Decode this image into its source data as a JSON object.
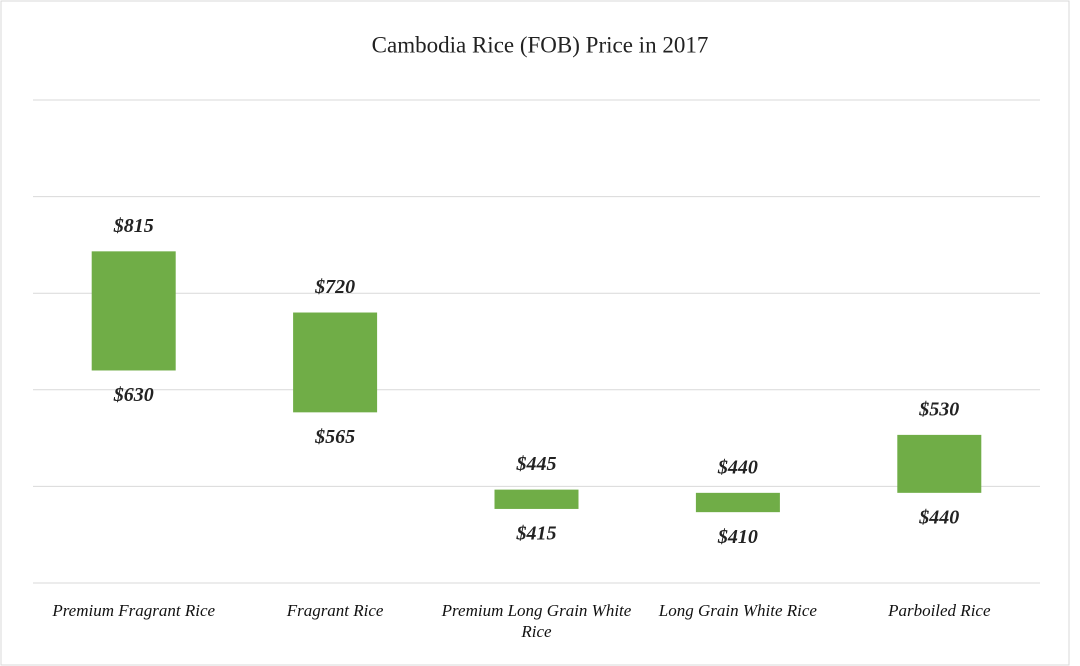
{
  "chart_data": {
    "type": "range_bar",
    "title": "Cambodia Rice (FOB) Price in 2017",
    "categories": [
      "Premium Fragrant Rice",
      "Fragrant Rice",
      "Premium Long Grain White Rice",
      "Long Grain White Rice",
      "Parboiled Rice"
    ],
    "low": [
      630,
      565,
      415,
      410,
      440
    ],
    "low_value_labels": [
      "$630",
      "$565",
      "$415",
      "$410",
      "$440"
    ],
    "high": [
      815,
      720,
      445,
      440,
      530
    ],
    "high_value_labels": [
      "$815",
      "$720",
      "$445",
      "$440",
      "$530"
    ],
    "color": "#70ad47",
    "ylim": [
      300,
      1050
    ],
    "yticks": [
      300,
      450,
      600,
      750,
      900,
      1050
    ],
    "grid": true
  }
}
